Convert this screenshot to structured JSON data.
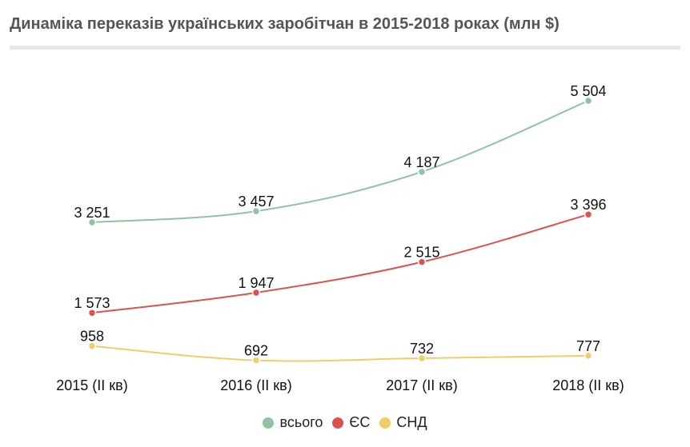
{
  "title": "Динаміка переказів українських заробітчан в 2015-2018 роках (млн $)",
  "chart_data": {
    "type": "line",
    "title": "Динаміка переказів українських заробітчан в 2015-2018 роках (млн $)",
    "categories": [
      "2015 (ІІ кв)",
      "2016 (ІІ кв)",
      "2017 (ІІ кв)",
      "2018 (ІІ кв)"
    ],
    "series": [
      {
        "name": "всього",
        "color": "#8fc3a2",
        "values": [
          3251,
          3457,
          4187,
          5504
        ],
        "labels": [
          "3 251",
          "3 457",
          "4 187",
          "5 504"
        ]
      },
      {
        "name": "ЄС",
        "color": "#d9534f",
        "values": [
          1573,
          1947,
          2515,
          3396
        ],
        "labels": [
          "1 573",
          "1 947",
          "2 515",
          "3 396"
        ]
      },
      {
        "name": "СНД",
        "color": "#f0cd6a",
        "values": [
          958,
          692,
          732,
          777
        ],
        "labels": [
          "958",
          "692",
          "732",
          "777"
        ]
      }
    ],
    "legend": "bottom",
    "grid": false,
    "xlabel": "",
    "ylabel": ""
  }
}
